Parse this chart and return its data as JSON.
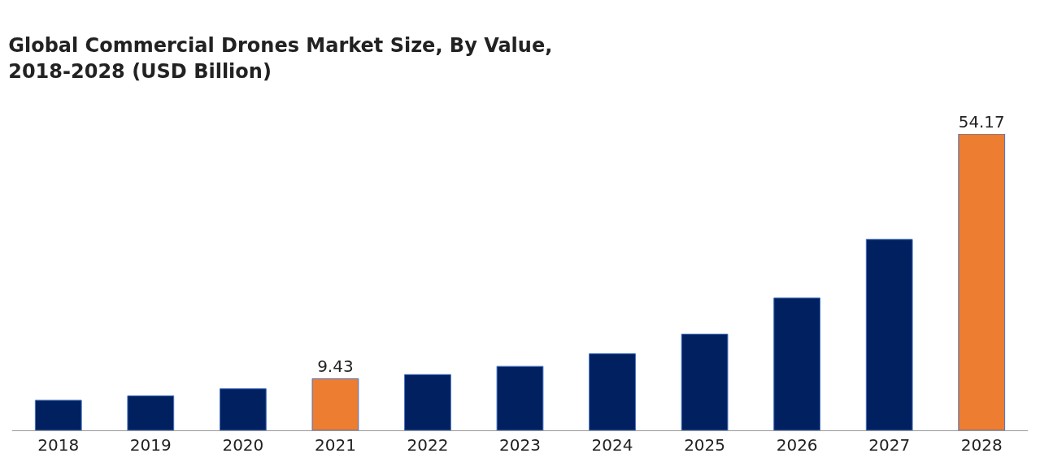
{
  "chart_data": {
    "type": "bar",
    "title": "Global Commercial Drones Market Size, By Value,\n2018-2028 (USD Billion)",
    "categories": [
      "2018",
      "2019",
      "2020",
      "2021",
      "2022",
      "2023",
      "2024",
      "2025",
      "2026",
      "2027",
      "2028"
    ],
    "values": [
      5.5,
      6.3,
      7.6,
      9.43,
      10.2,
      11.7,
      14.0,
      17.6,
      24.2,
      34.9,
      54.17
    ],
    "colors": [
      "#002060",
      "#002060",
      "#002060",
      "#ed7d31",
      "#002060",
      "#002060",
      "#002060",
      "#002060",
      "#002060",
      "#002060",
      "#ed7d31"
    ],
    "value_labels": [
      null,
      null,
      null,
      "9.43",
      null,
      null,
      null,
      null,
      null,
      null,
      "54.17"
    ],
    "legend": false
  }
}
